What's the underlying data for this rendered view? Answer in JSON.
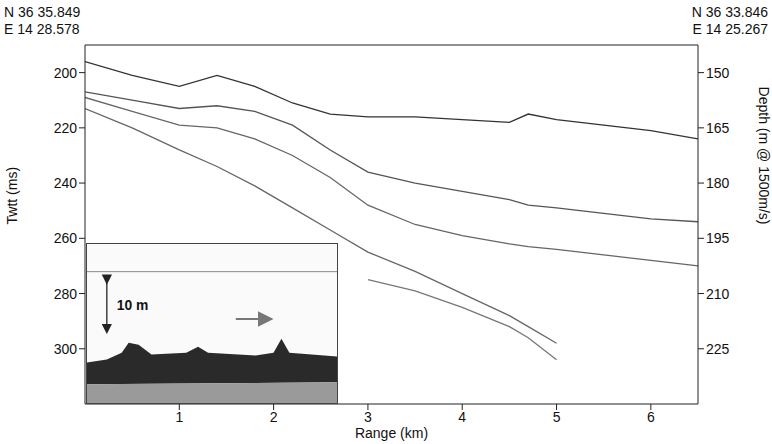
{
  "chart_data": {
    "type": "line",
    "xlabel": "Range (km)",
    "ylabel": "Twtt (ms)",
    "y2label": "Depth (m @ 1500m/s)",
    "start_coordinates": [
      "N 36 35.849",
      "E 14 28.578"
    ],
    "end_coordinates": [
      "N 36 33.846",
      "E 14 25.267"
    ],
    "inset_label": "10 m",
    "x": [
      0,
      0.5,
      1,
      1.4,
      1.8,
      2.2,
      2.6,
      3,
      3.5,
      4,
      4.5,
      4.7,
      5,
      5.5,
      6,
      6.5
    ],
    "xlim": [
      0,
      6.5
    ],
    "xticks": [
      1,
      2,
      3,
      4,
      5,
      6
    ],
    "ylim": [
      190,
      320
    ],
    "yticks": [
      200,
      220,
      240,
      260,
      280,
      300
    ],
    "y2lim": [
      142.5,
      240
    ],
    "y2ticks": [
      150,
      165,
      180,
      195,
      210,
      225
    ],
    "grid": false,
    "series": [
      {
        "color": "#333333",
        "values": [
          196,
          201,
          205,
          201,
          205,
          211,
          215,
          216,
          216,
          217,
          218,
          215,
          217,
          219,
          221,
          224
        ]
      },
      {
        "color": "#555555",
        "values": [
          207,
          210,
          213,
          212,
          214,
          219,
          228,
          236,
          240,
          243,
          246,
          248,
          249,
          251,
          253,
          254
        ]
      },
      {
        "color": "#666666",
        "values": [
          209,
          214,
          219,
          220,
          224,
          230,
          238,
          248,
          255,
          259,
          262,
          263,
          264,
          266,
          268,
          270
        ]
      },
      {
        "color": "#666666",
        "values": [
          213,
          220,
          228,
          234,
          241,
          249,
          257,
          265,
          272,
          280,
          288,
          292,
          298,
          null,
          null,
          null
        ]
      },
      {
        "color": "#777777",
        "values": [
          null,
          null,
          null,
          null,
          null,
          null,
          null,
          275,
          279,
          285,
          292,
          296,
          304,
          null,
          null,
          null
        ]
      }
    ]
  }
}
